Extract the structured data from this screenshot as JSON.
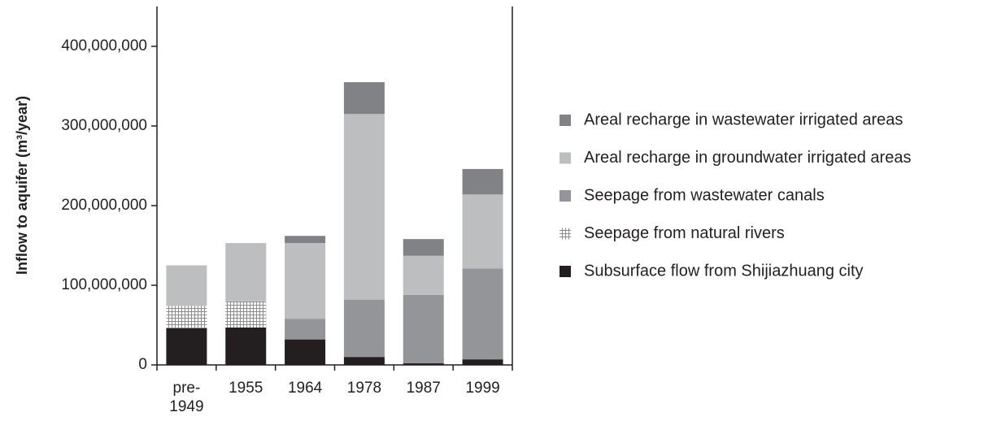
{
  "chart_data": {
    "type": "stacked-bar",
    "y_label": "Inflow to aquifer (m³/year)",
    "categories": [
      "pre-1949",
      "1955",
      "1964",
      "1978",
      "1987",
      "1999"
    ],
    "series": [
      {
        "name": "Subsurface flow from Shijiazhuang city",
        "color": "#231f20",
        "values": [
          46000000,
          47000000,
          32000000,
          10000000,
          2000000,
          7000000
        ]
      },
      {
        "name": "Seepage from natural rivers",
        "color": "#8c8c8c",
        "pattern": "grid",
        "values": [
          28000000,
          33000000,
          0,
          0,
          0,
          0
        ]
      },
      {
        "name": "Seepage from wastewater canals",
        "color": "#939598",
        "values": [
          0,
          0,
          26000000,
          72000000,
          86000000,
          114000000
        ]
      },
      {
        "name": "Areal recharge in groundwater irrigated areas",
        "color": "#bcbec0",
        "values": [
          51000000,
          73000000,
          95000000,
          233000000,
          49000000,
          93000000
        ]
      },
      {
        "name": "Areal recharge in wastewater irrigated areas",
        "color": "#808285",
        "values": [
          0,
          0,
          9000000,
          40000000,
          21000000,
          32000000
        ]
      }
    ],
    "ylim": [
      0,
      450000000
    ],
    "yticks": [
      0,
      {
        "value": 100000000,
        "label": "100,000,000"
      },
      {
        "value": 200000000,
        "label": "200,000,000"
      },
      {
        "value": 300000000,
        "label": "300,000,000"
      },
      {
        "value": 400000000,
        "label": "400,000,000"
      }
    ],
    "legend": "right",
    "grid": false
  }
}
